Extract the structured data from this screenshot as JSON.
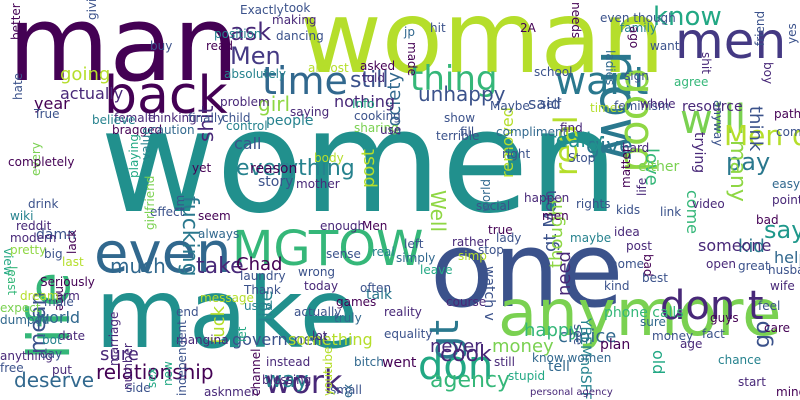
{
  "words": [
    "women",
    "man",
    "woman",
    "one",
    "make",
    "anymore",
    "even",
    "life",
    "back",
    "MGTOW",
    "men",
    "now",
    "don t",
    "time",
    "want",
    "thing",
    "will",
    "good",
    "don",
    "gt",
    "Men don",
    "pay",
    "know",
    "work",
    "relationship",
    "real",
    "give",
    "go",
    "say",
    "ask",
    "Men",
    "cook",
    "much",
    "still",
    "way",
    "take",
    "everything",
    "agency",
    "many",
    "unhappy",
    "Chad",
    "shit",
    "fucking",
    "girl",
    "really",
    "sure",
    "deserve",
    "mean",
    "Well",
    "money",
    "never",
    "choice",
    "love",
    "said",
    "gt Men",
    "thought",
    "removed",
    "need",
    "happy",
    "fuck",
    "live",
    "post",
    "society",
    "old",
    "kid",
    "someone",
    "come",
    "think",
    "help",
    "resource",
    "government",
    "something",
    "world",
    "year",
    "going",
    "actually",
    "damn",
    "call",
    "people",
    "story",
    "reason",
    "nothing",
    "talk",
    "went",
    "watch v",
    "YBEMndSFFMk",
    "phone calls",
    "plan",
    "tell",
    "hard",
    "either",
    "trying",
    "bad",
    "see",
    "know women",
    "personal agency",
    "still",
    "stupid",
    "course",
    "today",
    "wrong",
    "lot",
    "small",
    "ex",
    "youtube",
    "bitch",
    "reality",
    "equality",
    "truly",
    "end",
    "laundry",
    "Thank",
    "used",
    "message",
    "asknmen",
    "side",
    "instead",
    "blessing",
    "mangina",
    "channel",
    "let",
    "new",
    "independent",
    "sex",
    "number",
    "date",
    "lack",
    "True",
    "every",
    "completely",
    "view",
    "reddit",
    "modern",
    "wiki",
    "drink",
    "pretty",
    "big",
    "nice",
    "arm",
    "male",
    "anything",
    "free",
    "dumped",
    "expect",
    "Seriously",
    "least",
    "bot",
    "day",
    "dream",
    "last",
    "put",
    "marriage",
    "better",
    "hate",
    "giving",
    "female",
    "believe",
    "bragged",
    "thinking",
    "caution",
    "finally",
    "child",
    "problem",
    "control",
    "yet",
    "seem",
    "effect",
    "always",
    "girlfriend",
    "Im",
    "playing",
    "value",
    "buy",
    "read",
    "position",
    "Exactly",
    "absolutely",
    "making",
    "dancing",
    "took",
    "almost",
    "saying",
    "Info",
    "cooking",
    "asked",
    "told",
    "sharing",
    "use",
    "jp",
    "made",
    "hit",
    "show",
    "terrible",
    "fill",
    "compliment",
    "right",
    "Maybe",
    "2A",
    "school",
    "self",
    "find",
    "Stop",
    "times",
    "needs",
    "even though",
    "family",
    "ladies",
    "feminism",
    "sign",
    "whole",
    "ago",
    "want",
    "agree",
    "shit",
    "anyway",
    "friend",
    "boy",
    "yes",
    "pathetic",
    "comments",
    "easy",
    "point",
    "husband",
    "wife",
    "feel",
    "care",
    "mind",
    "start",
    "sure",
    "money",
    "age",
    "fact",
    "guys",
    "chance",
    "open",
    "great",
    "bad",
    "video",
    "link",
    "kids",
    "idea",
    "post",
    "home",
    "best",
    "kind",
    "matter",
    "life",
    "maybe",
    "rights",
    "men",
    "happen",
    "social",
    "world",
    "lady",
    "true",
    "simp",
    "rather",
    "stop",
    "leave",
    "left",
    "simply",
    "real",
    "Men",
    "often",
    "enough",
    "sense",
    "games",
    "actually",
    "mother",
    "body"
  ]
}
